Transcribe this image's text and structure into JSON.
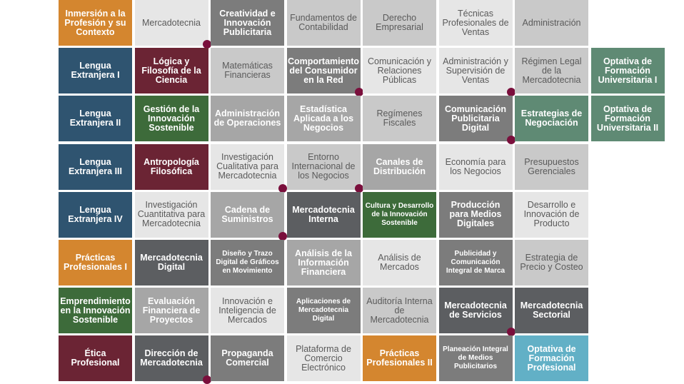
{
  "palette": {
    "orange": "#d4862f",
    "lightest": "#e6e6e6",
    "light": "#c9c9c9",
    "mid": "#a6a6a6",
    "dark": "#7c7c7c",
    "darker": "#5c5e61",
    "blue": "#2f5470",
    "maroon": "#6b2434",
    "green": "#3d6b3a",
    "sage": "#5f8a74",
    "teal": "#62b0c6",
    "dot": "#7a0f3c"
  },
  "rows": [
    [
      {
        "label": "Inmersión a la Profesión y su Contexto",
        "color": "orange"
      },
      {
        "label": "Mercadotecnia",
        "color": "lightest",
        "dot": true
      },
      {
        "label": "Creatividad e Innovación Publicitaria",
        "color": "dark"
      },
      {
        "label": "Fundamentos de Contabilidad",
        "color": "light"
      },
      {
        "label": "Derecho Empresarial",
        "color": "light"
      },
      {
        "label": "Técnicas Profesionales de Ventas",
        "color": "lightest"
      },
      {
        "label": "Administración",
        "color": "light"
      }
    ],
    [
      {
        "label": "Lengua Extranjera I",
        "color": "blue"
      },
      {
        "label": "Lógica y Filosofía de la Ciencia",
        "color": "maroon"
      },
      {
        "label": "Matemáticas Financieras",
        "color": "light"
      },
      {
        "label": "Comportamiento del Consumidor en la Red",
        "color": "dark",
        "dot": true
      },
      {
        "label": "Comunicación y Relaciones Públicas",
        "color": "lightest"
      },
      {
        "label": "Administración y Supervisión de Ventas",
        "color": "lightest",
        "dot": true
      },
      {
        "label": "Régimen Legal de la Mercadotecnia",
        "color": "light"
      },
      {
        "label": "Optativa de Formación Universitaria I",
        "color": "sage"
      }
    ],
    [
      {
        "label": "Lengua Extranjera II",
        "color": "blue"
      },
      {
        "label": "Gestión de la Innovación Sostenible",
        "color": "green"
      },
      {
        "label": "Administración de Operaciones",
        "color": "mid"
      },
      {
        "label": "Estadística Aplicada a los Negocios",
        "color": "mid"
      },
      {
        "label": "Regímenes Fiscales",
        "color": "light"
      },
      {
        "label": "Comunicación Publicitaria Digital",
        "color": "dark",
        "dot": true
      },
      {
        "label": "Estrategias de Negociación",
        "color": "sage"
      },
      {
        "label": "Optativa de Formación Universitaria II",
        "color": "sage"
      }
    ],
    [
      {
        "label": "Lengua Extranjera III",
        "color": "blue"
      },
      {
        "label": "Antropología Filosófica",
        "color": "maroon"
      },
      {
        "label": "Investigación Cualitativa para Mercadotecnia",
        "color": "lightest",
        "dot": true
      },
      {
        "label": "Entorno Internacional de los Negocios",
        "color": "light",
        "dot": true
      },
      {
        "label": "Canales de Distribución",
        "color": "mid"
      },
      {
        "label": "Economía para los Negocios",
        "color": "lightest"
      },
      {
        "label": "Presupuestos Gerenciales",
        "color": "light"
      }
    ],
    [
      {
        "label": "Lengua Extranjera IV",
        "color": "blue"
      },
      {
        "label": "Investigación Cuantitativa para Mercadotecnia",
        "color": "lightest"
      },
      {
        "label": "Cadena de Suministros",
        "color": "mid",
        "dot": true
      },
      {
        "label": "Mercadotecnia Interna",
        "color": "darker"
      },
      {
        "label": "Cultura y Desarrollo de la Innovación Sostenible",
        "color": "green",
        "small": true
      },
      {
        "label": "Producción para Medios Digitales",
        "color": "dark"
      },
      {
        "label": "Desarrollo e Innovación de Producto",
        "color": "lightest"
      }
    ],
    [
      {
        "label": "Prácticas Profesionales I",
        "color": "orange"
      },
      {
        "label": "Mercadotecnia Digital",
        "color": "darker"
      },
      {
        "label": "Diseño y Trazo Digital de Gráficos en Movimiento",
        "color": "dark",
        "small": true
      },
      {
        "label": "Análisis de la Información Financiera",
        "color": "mid"
      },
      {
        "label": "Análisis de Mercados",
        "color": "lightest"
      },
      {
        "label": "Publicidad y Comunicación Integral de Marca",
        "color": "dark",
        "small": true
      },
      {
        "label": "Estrategia de Precio y Costeo",
        "color": "light"
      }
    ],
    [
      {
        "label": "Emprendimiento en la Innovación Sostenible",
        "color": "green"
      },
      {
        "label": "Evaluación Financiera de Proyectos",
        "color": "mid"
      },
      {
        "label": "Innovación e Inteligencia de Mercados",
        "color": "lightest"
      },
      {
        "label": "Aplicaciones de Mercadotecnia Digital",
        "color": "dark",
        "small": true
      },
      {
        "label": "Auditoría Interna de Mercadotecnia",
        "color": "light"
      },
      {
        "label": "Mercadotecnia de Servicios",
        "color": "darker",
        "dot": true
      },
      {
        "label": "Mercadotecnia Sectorial",
        "color": "darker"
      }
    ],
    [
      {
        "label": "Ética Profesional",
        "color": "maroon"
      },
      {
        "label": "Dirección de Mercadotecnia",
        "color": "darker",
        "dot": true
      },
      {
        "label": "Propaganda Comercial",
        "color": "dark"
      },
      {
        "label": "Plataforma de Comercio Electrónico",
        "color": "lightest"
      },
      {
        "label": "Prácticas Profesionales II",
        "color": "orange"
      },
      {
        "label": "Planeación Integral de Medios Publicitarios",
        "color": "dark",
        "small": true
      },
      {
        "label": "Optativa de Formación Profesional",
        "color": "teal"
      }
    ]
  ]
}
